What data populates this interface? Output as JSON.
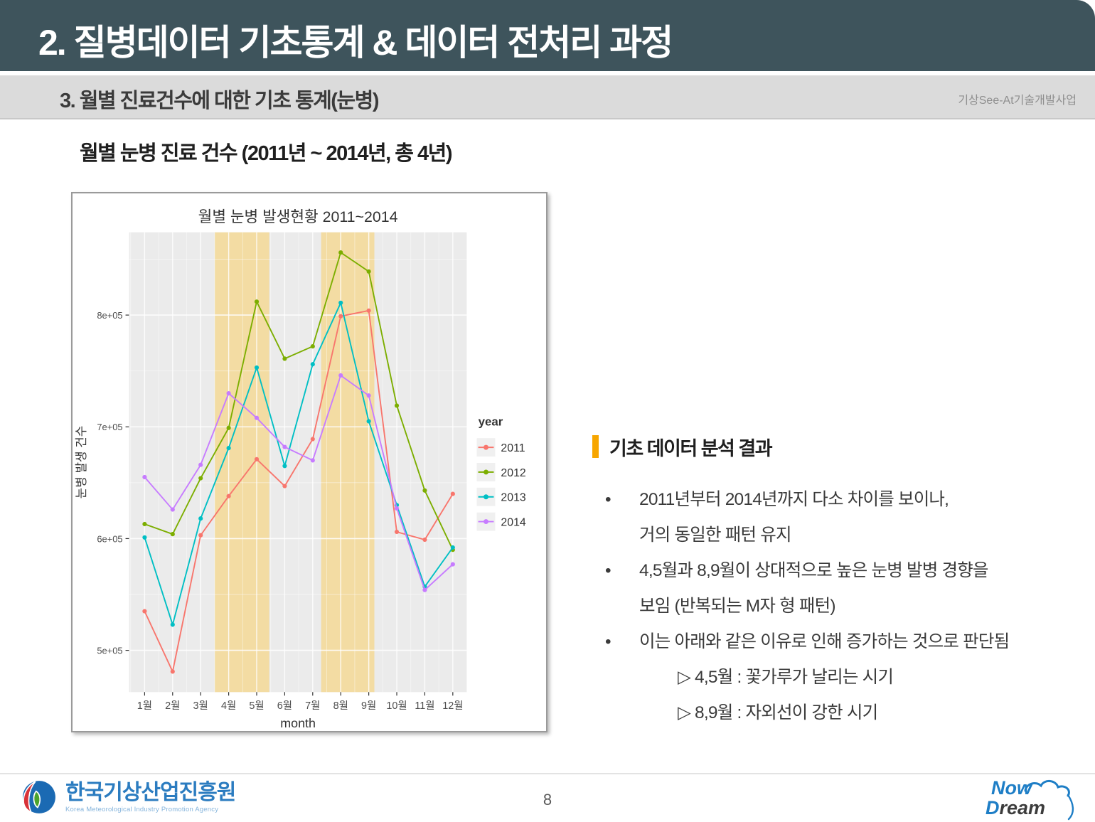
{
  "header": {
    "title": "2. 질병데이터 기초통계 & 데이터 전처리 과정"
  },
  "subheader": {
    "title": "3. 월별 진료건수에 대한 기초 통계(눈병)",
    "right_label": "기상See-At기술개발사업"
  },
  "section_title": "월별 눈병 진료 건수 (2011년 ~ 2014년, 총 4년)",
  "analysis": {
    "heading": "기초 데이터 분석 결과",
    "bullets": [
      {
        "lines": [
          "2011년부터 2014년까지 다소 차이를 보이나,",
          "거의 동일한 패턴 유지"
        ]
      },
      {
        "lines": [
          "4,5월과 8,9월이 상대적으로 높은 눈병 발병 경향을",
          "보임 (반복되는 M자 형 패턴)"
        ]
      },
      {
        "lines": [
          "이는 아래와 같은 이유로 인해 증가하는 것으로 판단됨"
        ],
        "subitems": [
          "▷ 4,5월 : 꽃가루가 날리는 시기",
          "▷ 8,9월 : 자외선이 강한 시기"
        ]
      }
    ]
  },
  "footer": {
    "page_number": "8",
    "org_kr": "한국기상산업진흥원",
    "org_en": "Korea Meteorological Industry Promotion Agency",
    "right_logo": {
      "now": "Now",
      "d": "D",
      "ream": "ream"
    }
  },
  "chart_data": {
    "type": "line",
    "title": "월별 눈병 발생현황 2011~2014",
    "xlabel": "month",
    "ylabel": "눈병 발생 건수",
    "legend_title": "year",
    "legend_position": "right",
    "grid": true,
    "panel_bg": "#EBEBEB",
    "categories": [
      "1월",
      "2월",
      "3월",
      "4월",
      "5월",
      "6월",
      "7월",
      "8월",
      "9월",
      "10월",
      "11월",
      "12월"
    ],
    "ylim": [
      463000,
      874000
    ],
    "yticks": [
      {
        "value": 500000,
        "label": "5e+05"
      },
      {
        "value": 600000,
        "label": "6e+05"
      },
      {
        "value": 700000,
        "label": "7e+05"
      },
      {
        "value": 800000,
        "label": "8e+05"
      }
    ],
    "highlight_bands": [
      {
        "from_month": 3.5,
        "to_month": 5.45,
        "color": "#F3DCA3"
      },
      {
        "from_month": 7.3,
        "to_month": 9.2,
        "color": "#F3DCA3"
      }
    ],
    "series": [
      {
        "name": "2011",
        "color": "#F8766D",
        "values": [
          535000,
          481000,
          603000,
          638000,
          671000,
          647000,
          689000,
          799000,
          804000,
          606000,
          599000,
          640000
        ]
      },
      {
        "name": "2012",
        "color": "#7CAE00",
        "values": [
          613000,
          604000,
          654000,
          699000,
          812000,
          761000,
          772000,
          856000,
          839000,
          719000,
          643000,
          590000
        ]
      },
      {
        "name": "2013",
        "color": "#00BFC4",
        "values": [
          601000,
          523000,
          618000,
          681000,
          753000,
          665000,
          756000,
          811000,
          705000,
          630000,
          557000,
          592000
        ]
      },
      {
        "name": "2014",
        "color": "#C77CFF",
        "values": [
          655000,
          626000,
          666000,
          730000,
          708000,
          682000,
          670000,
          746000,
          728000,
          627000,
          554000,
          577000
        ]
      }
    ]
  }
}
